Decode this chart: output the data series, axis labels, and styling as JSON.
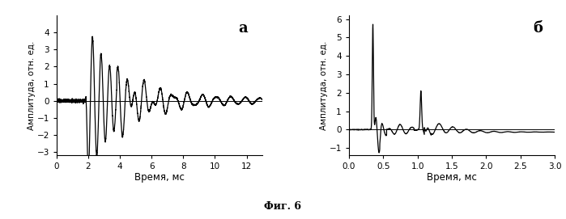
{
  "panel_a": {
    "label": "а",
    "xlabel": "Время, мс",
    "ylabel": "Амплитуда, отн. ед.",
    "xlim": [
      0,
      13
    ],
    "ylim": [
      -3.2,
      5
    ],
    "yticks": [
      -3,
      -2,
      -1,
      0,
      1,
      2,
      3,
      4
    ],
    "xticks": [
      0,
      2,
      4,
      6,
      8,
      10,
      12
    ]
  },
  "panel_b": {
    "label": "б",
    "xlabel": "Время, мс",
    "ylabel": "Амплитуда, отн. ед.",
    "xlim": [
      0,
      3
    ],
    "ylim": [
      -1.4,
      6.2
    ],
    "yticks": [
      -1,
      0,
      1,
      2,
      3,
      4,
      5,
      6
    ],
    "xticks": [
      0,
      0.5,
      1.0,
      1.5,
      2.0,
      2.5,
      3.0
    ]
  },
  "caption": "Фиг. 6",
  "line_color": "#000000",
  "bg_color": "#ffffff"
}
